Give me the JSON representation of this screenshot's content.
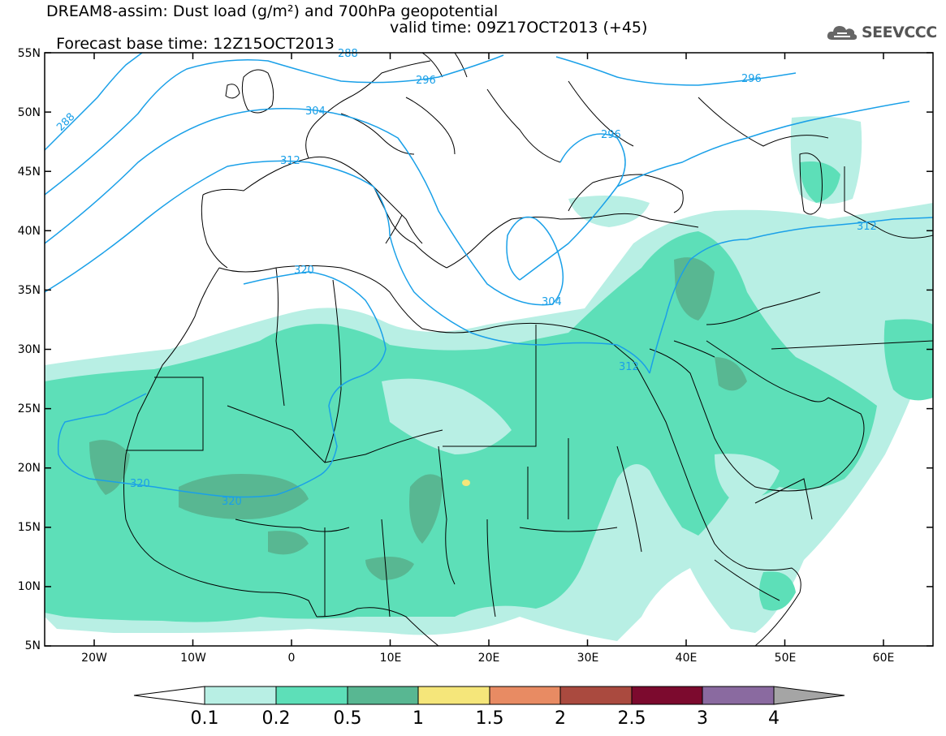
{
  "title": {
    "line1": "DREAM8-assim: Dust load (g/m²) and 700hPa geopotential",
    "line2_base": "Forecast base time: 12Z15OCT2013",
    "line2_valid": "valid time: 09Z17OCT2013 (+45)"
  },
  "logo": {
    "text": "SEEVCCC",
    "icon": "cloud-icon"
  },
  "map": {
    "lat_labels": [
      "55N",
      "50N",
      "45N",
      "40N",
      "35N",
      "30N",
      "25N",
      "20N",
      "15N",
      "10N",
      "5N"
    ],
    "lon_labels": [
      "20W",
      "10W",
      "0",
      "10E",
      "20E",
      "30E",
      "40E",
      "50E",
      "60E"
    ],
    "contour_labels": [
      "288",
      "288",
      "296",
      "296",
      "296",
      "304",
      "304",
      "312",
      "312",
      "312",
      "320",
      "320",
      "320"
    ],
    "colors": {
      "contour": "#1aa0e8",
      "land_outline": "#000000"
    }
  },
  "colorbar": {
    "labels": [
      "0.1",
      "0.2",
      "0.5",
      "1",
      "1.5",
      "2",
      "2.5",
      "3",
      "4"
    ],
    "colors": [
      "#ffffff",
      "#b8efe4",
      "#5ddfb8",
      "#58b792",
      "#f5e67a",
      "#e88b63",
      "#aa4a3f",
      "#7c0a2e",
      "#8a6aa0",
      "#a5a5a5"
    ]
  }
}
